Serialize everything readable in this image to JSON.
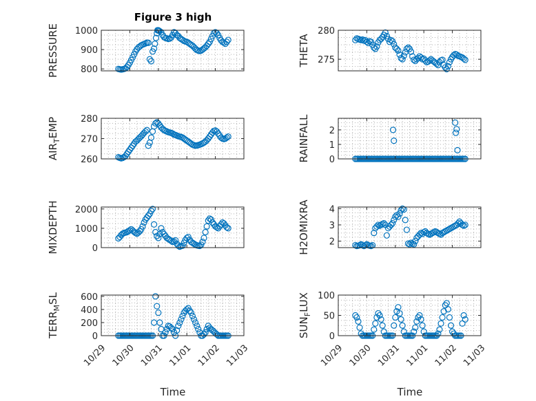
{
  "figure_title": "Figure 3 high",
  "xaxis_label": "Time",
  "x_tick_labels": [
    "10/29",
    "10/30",
    "10/31",
    "11/01",
    "11/02",
    "11/03"
  ],
  "marker_color": "#0072BD",
  "chart_data": [
    {
      "type": "scatter",
      "title": "Figure 3 high",
      "ylabel": "PRESSURE",
      "ylim": [
        790,
        1000
      ],
      "yticks": [
        800,
        900,
        1000
      ],
      "xlim": [
        0,
        5
      ],
      "grid": true,
      "x": [
        0.6,
        0.65,
        0.7,
        0.75,
        0.8,
        0.85,
        0.9,
        0.95,
        1.0,
        1.05,
        1.1,
        1.15,
        1.2,
        1.25,
        1.3,
        1.35,
        1.4,
        1.45,
        1.5,
        1.55,
        1.6,
        1.65,
        1.7,
        1.75,
        1.8,
        1.85,
        1.88,
        1.92,
        1.95,
        1.97,
        2.0,
        2.02,
        2.05,
        2.1,
        2.15,
        2.2,
        2.25,
        2.3,
        2.35,
        2.4,
        2.45,
        2.5,
        2.55,
        2.6,
        2.65,
        2.7,
        2.75,
        2.8,
        2.85,
        2.9,
        2.95,
        3.0,
        3.05,
        3.1,
        3.15,
        3.2,
        3.25,
        3.3,
        3.35,
        3.4,
        3.45,
        3.5,
        3.55,
        3.6,
        3.65,
        3.7,
        3.75,
        3.8,
        3.85,
        3.9,
        3.95,
        4.0,
        4.05,
        4.1,
        4.15,
        4.2,
        4.25,
        4.3,
        4.35,
        4.4,
        4.45
      ],
      "y": [
        800,
        798,
        797,
        798,
        800,
        803,
        810,
        820,
        832,
        846,
        860,
        875,
        890,
        902,
        910,
        916,
        922,
        926,
        929,
        932,
        936,
        935,
        850,
        840,
        890,
        905,
        930,
        960,
        985,
        1000,
        1000,
        998,
        995,
        990,
        975,
        965,
        960,
        958,
        955,
        957,
        962,
        975,
        990,
        985,
        975,
        970,
        960,
        955,
        950,
        945,
        942,
        940,
        935,
        930,
        925,
        920,
        913,
        905,
        898,
        895,
        893,
        895,
        900,
        906,
        912,
        920,
        930,
        940,
        955,
        970,
        985,
        990,
        985,
        975,
        960,
        948,
        940,
        935,
        930,
        940,
        950
      ]
    },
    {
      "type": "scatter",
      "ylabel": "THETA",
      "ylim": [
        273,
        280
      ],
      "yticks": [
        275,
        280
      ],
      "xlim": [
        0,
        5
      ],
      "grid": true,
      "x": [
        0.6,
        0.65,
        0.7,
        0.75,
        0.8,
        0.85,
        0.9,
        0.95,
        1.0,
        1.05,
        1.1,
        1.15,
        1.2,
        1.25,
        1.3,
        1.35,
        1.4,
        1.45,
        1.5,
        1.55,
        1.6,
        1.65,
        1.7,
        1.75,
        1.8,
        1.85,
        1.9,
        1.95,
        2.0,
        2.05,
        2.1,
        2.15,
        2.2,
        2.25,
        2.3,
        2.35,
        2.4,
        2.45,
        2.5,
        2.55,
        2.6,
        2.65,
        2.7,
        2.75,
        2.8,
        2.85,
        2.9,
        2.95,
        3.0,
        3.05,
        3.1,
        3.15,
        3.2,
        3.25,
        3.3,
        3.35,
        3.4,
        3.45,
        3.5,
        3.55,
        3.6,
        3.65,
        3.7,
        3.75,
        3.8,
        3.85,
        3.9,
        3.95,
        4.0,
        4.05,
        4.1,
        4.15,
        4.2,
        4.25,
        4.3,
        4.35,
        4.4,
        4.45
      ],
      "y": [
        278.3,
        278.6,
        278.5,
        278.4,
        278.3,
        278.4,
        278.2,
        278.3,
        278.0,
        277.8,
        278.1,
        278.0,
        277.5,
        277.0,
        276.8,
        277.2,
        277.9,
        278.3,
        278.5,
        278.8,
        279.2,
        279.6,
        279.0,
        278.5,
        278.0,
        278.3,
        278.1,
        277.6,
        277.0,
        276.8,
        276.5,
        275.8,
        275.2,
        275.0,
        275.6,
        276.2,
        276.8,
        277.0,
        276.8,
        276.3,
        275.5,
        274.9,
        274.7,
        275.0,
        275.2,
        275.5,
        275.3,
        275.0,
        275.1,
        274.8,
        274.5,
        274.6,
        274.8,
        275.0,
        274.8,
        274.6,
        274.4,
        274.2,
        274.0,
        274.5,
        274.8,
        274.9,
        274.0,
        273.6,
        273.3,
        273.8,
        274.5,
        275.0,
        275.4,
        275.7,
        275.9,
        275.8,
        275.6,
        275.5,
        275.4,
        275.3,
        275.1,
        274.9
      ]
    },
    {
      "type": "scatter",
      "ylabel": "AIR_TEMP",
      "ylim": [
        260,
        280
      ],
      "yticks": [
        260,
        270,
        280
      ],
      "xlim": [
        0,
        5
      ],
      "grid": true,
      "x": [
        0.6,
        0.65,
        0.7,
        0.75,
        0.8,
        0.85,
        0.9,
        0.95,
        1.0,
        1.05,
        1.1,
        1.15,
        1.2,
        1.25,
        1.3,
        1.35,
        1.4,
        1.45,
        1.5,
        1.55,
        1.6,
        1.65,
        1.7,
        1.75,
        1.8,
        1.85,
        1.9,
        1.95,
        2.0,
        2.05,
        2.1,
        2.15,
        2.2,
        2.25,
        2.3,
        2.35,
        2.4,
        2.45,
        2.5,
        2.55,
        2.6,
        2.65,
        2.7,
        2.75,
        2.8,
        2.85,
        2.9,
        2.95,
        3.0,
        3.05,
        3.1,
        3.15,
        3.2,
        3.25,
        3.3,
        3.35,
        3.4,
        3.45,
        3.5,
        3.55,
        3.6,
        3.65,
        3.7,
        3.75,
        3.8,
        3.85,
        3.9,
        3.95,
        4.0,
        4.05,
        4.1,
        4.15,
        4.2,
        4.25,
        4.3,
        4.35,
        4.4,
        4.45
      ],
      "y": [
        260.8,
        260.5,
        260.3,
        260.5,
        260.9,
        261.5,
        262.5,
        263.5,
        264.5,
        265.5,
        266.5,
        267.5,
        268.5,
        269.0,
        269.8,
        270.5,
        271.2,
        272.0,
        272.8,
        273.5,
        274.2,
        266.5,
        268.0,
        270.5,
        273.5,
        276.0,
        277.5,
        278.0,
        277.5,
        276.5,
        275.5,
        274.8,
        274.2,
        273.8,
        273.5,
        273.2,
        273.0,
        272.8,
        272.5,
        272.0,
        271.8,
        271.5,
        271.2,
        271.0,
        270.8,
        270.5,
        270.0,
        269.5,
        269.0,
        268.5,
        268.0,
        267.5,
        267.0,
        266.8,
        266.5,
        266.6,
        266.8,
        267.0,
        267.3,
        267.6,
        268.0,
        268.5,
        269.2,
        270.0,
        271.0,
        272.0,
        273.0,
        273.8,
        274.0,
        273.5,
        272.5,
        271.5,
        270.5,
        270.0,
        269.8,
        270.0,
        270.5,
        271.0
      ]
    },
    {
      "type": "scatter",
      "ylabel": "RAINFALL",
      "ylim": [
        0,
        2.8
      ],
      "yticks": [
        0,
        1,
        2
      ],
      "xlim": [
        0,
        5
      ],
      "grid": true,
      "x": [
        0.6,
        0.65,
        0.7,
        0.75,
        0.8,
        0.85,
        0.9,
        0.95,
        1.0,
        1.05,
        1.1,
        1.15,
        1.2,
        1.25,
        1.3,
        1.35,
        1.4,
        1.45,
        1.5,
        1.55,
        1.6,
        1.65,
        1.7,
        1.75,
        1.8,
        1.85,
        1.9,
        1.95,
        2.0,
        2.05,
        2.1,
        2.15,
        2.2,
        2.25,
        2.3,
        2.35,
        2.4,
        2.45,
        2.5,
        2.55,
        2.6,
        2.65,
        2.7,
        2.75,
        2.8,
        2.85,
        2.9,
        2.95,
        3.0,
        3.05,
        3.1,
        3.15,
        3.2,
        3.25,
        3.3,
        3.35,
        3.4,
        3.45,
        3.5,
        3.55,
        3.6,
        3.65,
        3.7,
        3.75,
        3.8,
        3.85,
        3.9,
        3.95,
        4.0,
        4.05,
        4.1,
        4.15,
        4.2,
        4.25,
        4.3,
        4.35,
        4.4,
        4.45,
        1.92,
        1.95,
        4.1,
        4.12,
        4.15,
        4.18
      ],
      "y": [
        0,
        0,
        0,
        0,
        0,
        0,
        0,
        0,
        0,
        0,
        0,
        0,
        0,
        0,
        0,
        0,
        0,
        0,
        0,
        0,
        0,
        0,
        0,
        0,
        0,
        0,
        0,
        0,
        0,
        0,
        0,
        0,
        0,
        0,
        0,
        0,
        0,
        0,
        0,
        0,
        0,
        0,
        0,
        0,
        0,
        0,
        0,
        0,
        0,
        0,
        0,
        0,
        0,
        0,
        0,
        0,
        0,
        0,
        0,
        0,
        0,
        0,
        0,
        0,
        0,
        0,
        0,
        0,
        0,
        0,
        0,
        0,
        0,
        0,
        0,
        0,
        0,
        0,
        2.0,
        1.25,
        2.5,
        1.8,
        2.05,
        0.6
      ]
    },
    {
      "type": "scatter",
      "ylabel": "MIXDEPTH",
      "ylim": [
        0,
        2100
      ],
      "yticks": [
        0,
        1000,
        2000
      ],
      "xlim": [
        0,
        5
      ],
      "grid": true,
      "x": [
        0.6,
        0.65,
        0.7,
        0.75,
        0.8,
        0.85,
        0.9,
        0.95,
        1.0,
        1.05,
        1.1,
        1.15,
        1.2,
        1.25,
        1.3,
        1.35,
        1.4,
        1.45,
        1.5,
        1.55,
        1.6,
        1.65,
        1.7,
        1.75,
        1.8,
        1.85,
        1.9,
        1.95,
        2.0,
        2.05,
        2.1,
        2.15,
        2.2,
        2.25,
        2.3,
        2.35,
        2.4,
        2.45,
        2.5,
        2.55,
        2.6,
        2.65,
        2.7,
        2.75,
        2.8,
        2.85,
        2.9,
        2.95,
        3.0,
        3.05,
        3.1,
        3.15,
        3.2,
        3.25,
        3.3,
        3.35,
        3.4,
        3.45,
        3.5,
        3.55,
        3.6,
        3.65,
        3.7,
        3.75,
        3.8,
        3.85,
        3.9,
        3.95,
        4.0,
        4.05,
        4.1,
        4.15,
        4.2,
        4.25,
        4.3,
        4.35,
        4.4,
        4.45
      ],
      "y": [
        480,
        550,
        650,
        720,
        760,
        780,
        800,
        850,
        900,
        950,
        880,
        820,
        760,
        720,
        780,
        850,
        950,
        1100,
        1300,
        1450,
        1550,
        1650,
        1750,
        1900,
        2000,
        1200,
        800,
        600,
        500,
        700,
        1000,
        800,
        700,
        600,
        500,
        450,
        400,
        350,
        300,
        320,
        380,
        200,
        100,
        50,
        80,
        100,
        250,
        400,
        500,
        550,
        400,
        300,
        250,
        200,
        150,
        120,
        100,
        90,
        150,
        300,
        500,
        800,
        1100,
        1400,
        1500,
        1450,
        1300,
        1200,
        1100,
        1050,
        1000,
        1100,
        1200,
        1300,
        1250,
        1150,
        1050,
        1000
      ]
    },
    {
      "type": "scatter",
      "ylabel": "H2OMIXRA",
      "ylim": [
        1.6,
        4.1
      ],
      "yticks": [
        2,
        3,
        4
      ],
      "xlim": [
        0,
        5
      ],
      "grid": true,
      "x": [
        0.6,
        0.65,
        0.7,
        0.75,
        0.8,
        0.85,
        0.9,
        0.95,
        1.0,
        1.05,
        1.1,
        1.15,
        1.2,
        1.25,
        1.3,
        1.35,
        1.4,
        1.45,
        1.5,
        1.55,
        1.6,
        1.65,
        1.7,
        1.75,
        1.8,
        1.85,
        1.9,
        1.95,
        2.0,
        2.05,
        2.1,
        2.15,
        2.2,
        2.25,
        2.3,
        2.35,
        2.4,
        2.45,
        2.5,
        2.55,
        2.6,
        2.65,
        2.7,
        2.75,
        2.8,
        2.85,
        2.9,
        2.95,
        3.0,
        3.05,
        3.1,
        3.15,
        3.2,
        3.25,
        3.3,
        3.35,
        3.4,
        3.45,
        3.5,
        3.55,
        3.6,
        3.65,
        3.7,
        3.75,
        3.8,
        3.85,
        3.9,
        3.95,
        4.0,
        4.05,
        4.1,
        4.15,
        4.2,
        4.25,
        4.3,
        4.35,
        4.4,
        4.45
      ],
      "y": [
        1.75,
        1.7,
        1.72,
        1.75,
        1.8,
        1.75,
        1.7,
        1.75,
        1.8,
        1.75,
        1.72,
        1.7,
        1.75,
        2.5,
        2.8,
        2.9,
        3.0,
        2.95,
        3.0,
        3.05,
        3.1,
        3.0,
        2.35,
        2.8,
        2.9,
        3.0,
        3.1,
        3.3,
        3.5,
        3.6,
        3.5,
        3.7,
        3.9,
        4.0,
        3.95,
        3.3,
        2.7,
        1.85,
        1.8,
        1.9,
        1.85,
        1.8,
        2.0,
        2.2,
        2.3,
        2.4,
        2.5,
        2.45,
        2.55,
        2.6,
        2.5,
        2.45,
        2.4,
        2.45,
        2.5,
        2.55,
        2.6,
        2.55,
        2.5,
        2.45,
        2.4,
        2.5,
        2.55,
        2.6,
        2.65,
        2.7,
        2.75,
        2.8,
        2.85,
        2.9,
        2.95,
        3.0,
        3.1,
        3.2,
        3.1,
        3.0,
        2.95,
        3.0
      ]
    },
    {
      "type": "scatter",
      "ylabel": "TERR_MSL",
      "ylim": [
        0,
        620
      ],
      "yticks": [
        0,
        200,
        400,
        600
      ],
      "xlim": [
        0,
        5
      ],
      "grid": true,
      "x": [
        0.6,
        0.65,
        0.7,
        0.75,
        0.8,
        0.85,
        0.9,
        0.95,
        1.0,
        1.05,
        1.1,
        1.15,
        1.2,
        1.25,
        1.3,
        1.35,
        1.4,
        1.45,
        1.5,
        1.55,
        1.6,
        1.65,
        1.7,
        1.75,
        1.8,
        1.85,
        1.9,
        1.95,
        2.0,
        2.05,
        2.1,
        2.15,
        2.2,
        2.25,
        2.3,
        2.35,
        2.4,
        2.45,
        2.5,
        2.55,
        2.6,
        2.65,
        2.7,
        2.75,
        2.8,
        2.85,
        2.9,
        2.95,
        3.0,
        3.05,
        3.1,
        3.15,
        3.2,
        3.25,
        3.3,
        3.35,
        3.4,
        3.45,
        3.5,
        3.55,
        3.6,
        3.65,
        3.7,
        3.75,
        3.8,
        3.85,
        3.9,
        3.95,
        4.0,
        4.05,
        4.1,
        4.15,
        4.2,
        4.25,
        4.3,
        4.35,
        4.4,
        4.45
      ],
      "y": [
        0,
        0,
        0,
        0,
        0,
        0,
        0,
        0,
        0,
        0,
        0,
        0,
        0,
        0,
        0,
        0,
        0,
        0,
        0,
        0,
        0,
        0,
        0,
        0,
        0,
        200,
        600,
        450,
        350,
        200,
        100,
        0,
        0,
        50,
        100,
        150,
        140,
        120,
        100,
        50,
        0,
        80,
        150,
        200,
        250,
        300,
        350,
        380,
        400,
        420,
        380,
        350,
        300,
        250,
        200,
        150,
        100,
        50,
        0,
        0,
        20,
        50,
        100,
        150,
        120,
        100,
        80,
        60,
        40,
        20,
        0,
        0,
        0,
        0,
        0,
        0,
        0,
        0
      ]
    },
    {
      "type": "scatter",
      "ylabel": "SUN_FLUX",
      "ylim": [
        0,
        100
      ],
      "yticks": [
        0,
        50,
        100
      ],
      "xlim": [
        0,
        5
      ],
      "grid": true,
      "x": [
        0.6,
        0.65,
        0.7,
        0.75,
        0.8,
        0.85,
        0.9,
        0.95,
        1.0,
        1.05,
        1.1,
        1.15,
        1.2,
        1.25,
        1.3,
        1.35,
        1.4,
        1.45,
        1.5,
        1.55,
        1.6,
        1.65,
        1.7,
        1.75,
        1.8,
        1.85,
        1.9,
        1.95,
        2.0,
        2.05,
        2.1,
        2.15,
        2.2,
        2.25,
        2.3,
        2.35,
        2.4,
        2.45,
        2.5,
        2.55,
        2.6,
        2.65,
        2.7,
        2.75,
        2.8,
        2.85,
        2.9,
        2.95,
        3.0,
        3.05,
        3.1,
        3.15,
        3.2,
        3.25,
        3.3,
        3.35,
        3.4,
        3.45,
        3.5,
        3.55,
        3.6,
        3.65,
        3.7,
        3.75,
        3.8,
        3.85,
        3.9,
        3.95,
        4.0,
        4.05,
        4.1,
        4.15,
        4.2,
        4.25,
        4.3,
        4.35,
        4.4,
        4.45
      ],
      "y": [
        50,
        45,
        35,
        20,
        5,
        0,
        0,
        0,
        0,
        0,
        0,
        0,
        0,
        15,
        30,
        45,
        55,
        50,
        40,
        25,
        10,
        0,
        0,
        0,
        0,
        0,
        0,
        25,
        45,
        60,
        70,
        55,
        40,
        25,
        10,
        0,
        0,
        0,
        0,
        0,
        0,
        10,
        20,
        35,
        45,
        50,
        40,
        25,
        10,
        0,
        0,
        0,
        0,
        0,
        0,
        0,
        0,
        0,
        5,
        15,
        30,
        45,
        60,
        75,
        80,
        65,
        45,
        25,
        10,
        5,
        0,
        0,
        0,
        0,
        0,
        30,
        50,
        40
      ]
    }
  ],
  "panel_ylabels": [
    {
      "main": "PRESSURE",
      "sub": "",
      "tail": ""
    },
    {
      "main": "THETA",
      "sub": "",
      "tail": ""
    },
    {
      "main": "AIR",
      "sub": "T",
      "tail": "EMP"
    },
    {
      "main": "RAINFALL",
      "sub": "",
      "tail": ""
    },
    {
      "main": "MIXDEPTH",
      "sub": "",
      "tail": ""
    },
    {
      "main": "H2OMIXRA",
      "sub": "",
      "tail": ""
    },
    {
      "main": "TERR",
      "sub": "M",
      "tail": "SL"
    },
    {
      "main": "SUN",
      "sub": "F",
      "tail": "LUX"
    }
  ]
}
